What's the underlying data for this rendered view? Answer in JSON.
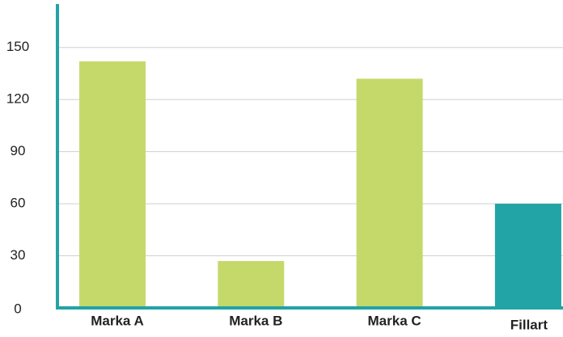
{
  "chart_data": {
    "type": "bar",
    "categories": [
      "Marka A",
      "Marka B",
      "Marka C",
      "Fillart"
    ],
    "values": [
      142,
      27,
      132,
      60
    ],
    "colors": [
      "#c5d96b",
      "#c5d96b",
      "#c5d96b",
      "#22a3a6"
    ],
    "axis_color": "#22a3a6",
    "ylim": [
      0,
      175
    ],
    "yticks": [
      0,
      30,
      60,
      90,
      120,
      150
    ],
    "grid": true
  }
}
